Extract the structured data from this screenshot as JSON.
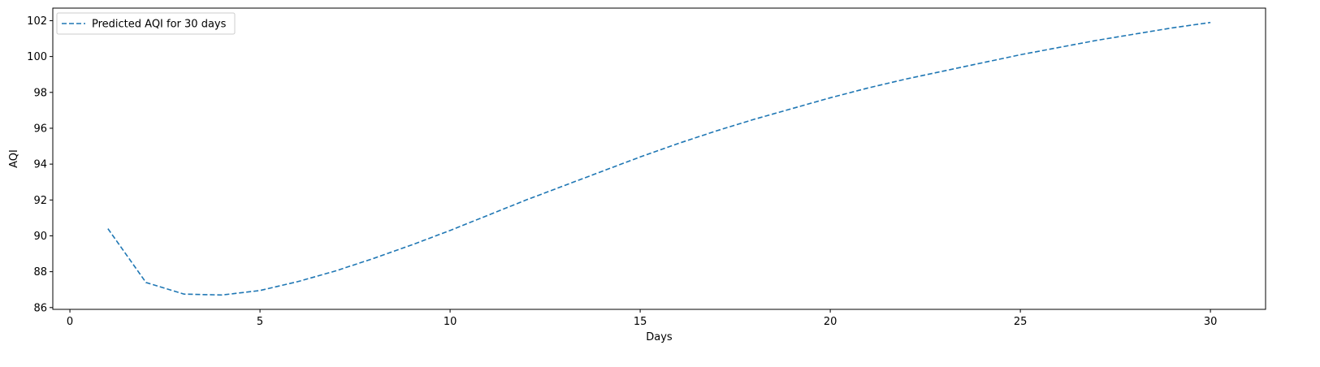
{
  "chart_data": {
    "type": "line",
    "title": "",
    "xlabel": "Days",
    "ylabel": "AQI",
    "xlim": [
      -0.45,
      31.45
    ],
    "ylim": [
      85.9,
      102.7
    ],
    "xticks": [
      0,
      5,
      10,
      15,
      20,
      25,
      30
    ],
    "yticks": [
      86,
      88,
      90,
      92,
      94,
      96,
      98,
      100,
      102
    ],
    "grid": false,
    "legend_position": "top-left",
    "series": [
      {
        "name": "Predicted AQI for 30 days",
        "color": "#1f77b4",
        "line_style": "dashed",
        "x": [
          1,
          2,
          3,
          4,
          5,
          6,
          7,
          8,
          9,
          10,
          11,
          12,
          13,
          14,
          15,
          16,
          17,
          18,
          19,
          20,
          21,
          22,
          23,
          24,
          25,
          26,
          27,
          28,
          29,
          30
        ],
        "y": [
          90.4,
          87.4,
          86.75,
          86.7,
          86.95,
          87.45,
          88.05,
          88.75,
          89.5,
          90.3,
          91.15,
          92.0,
          92.8,
          93.6,
          94.4,
          95.15,
          95.85,
          96.5,
          97.1,
          97.7,
          98.25,
          98.75,
          99.2,
          99.65,
          100.1,
          100.5,
          100.9,
          101.25,
          101.6,
          101.9
        ]
      }
    ]
  }
}
